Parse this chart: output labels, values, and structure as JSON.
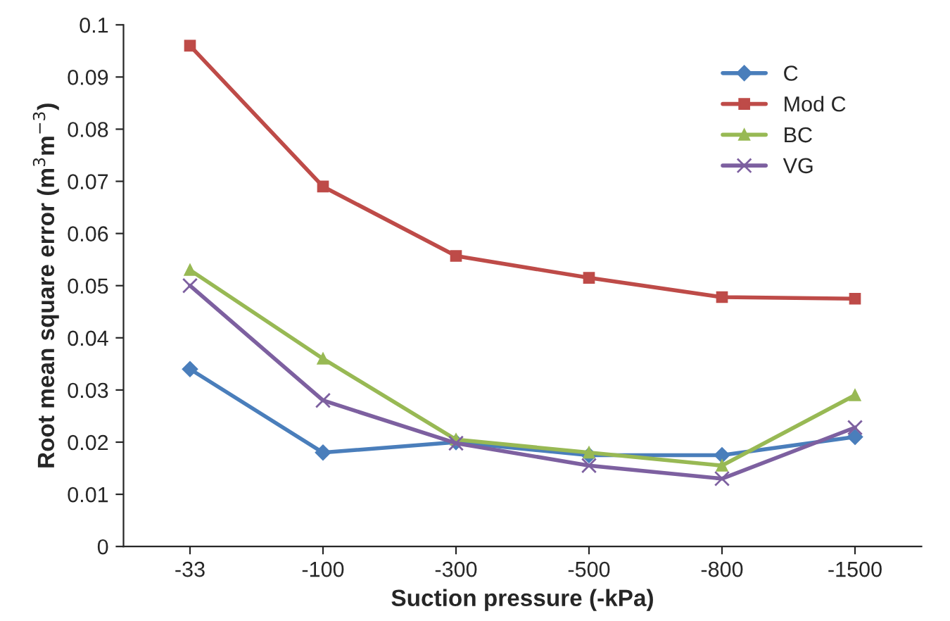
{
  "chart_data": {
    "type": "line",
    "xlabel": "Suction pressure (-kPa)",
    "ylabel": "Root mean square error (m$^{3}$m$^{−3}$)",
    "categories": [
      "-33",
      "-100",
      "-300",
      "-500",
      "-800",
      "-1500"
    ],
    "ylim": [
      0,
      0.1
    ],
    "yticks": [
      0,
      0.01,
      0.02,
      0.03,
      0.04,
      0.05,
      0.06,
      0.07,
      0.08,
      0.09,
      0.1
    ],
    "grid": false,
    "legend": "top right",
    "line_style": "solid",
    "series": [
      {
        "name": "C",
        "color": "#4a7ebb",
        "marker": "diamond",
        "values": [
          0.034,
          0.018,
          0.02,
          0.0175,
          0.0175,
          0.021
        ]
      },
      {
        "name": "Mod C",
        "color": "#be4b48",
        "marker": "square",
        "values": [
          0.096,
          0.069,
          0.0557,
          0.0515,
          0.0478,
          0.0475
        ]
      },
      {
        "name": "BC",
        "color": "#98b954",
        "marker": "triangle",
        "values": [
          0.053,
          0.036,
          0.0205,
          0.018,
          0.0155,
          0.029
        ]
      },
      {
        "name": "VG",
        "color": "#7d60a0",
        "marker": "cross",
        "values": [
          0.05,
          0.028,
          0.0198,
          0.0155,
          0.013,
          0.0228
        ]
      }
    ]
  }
}
